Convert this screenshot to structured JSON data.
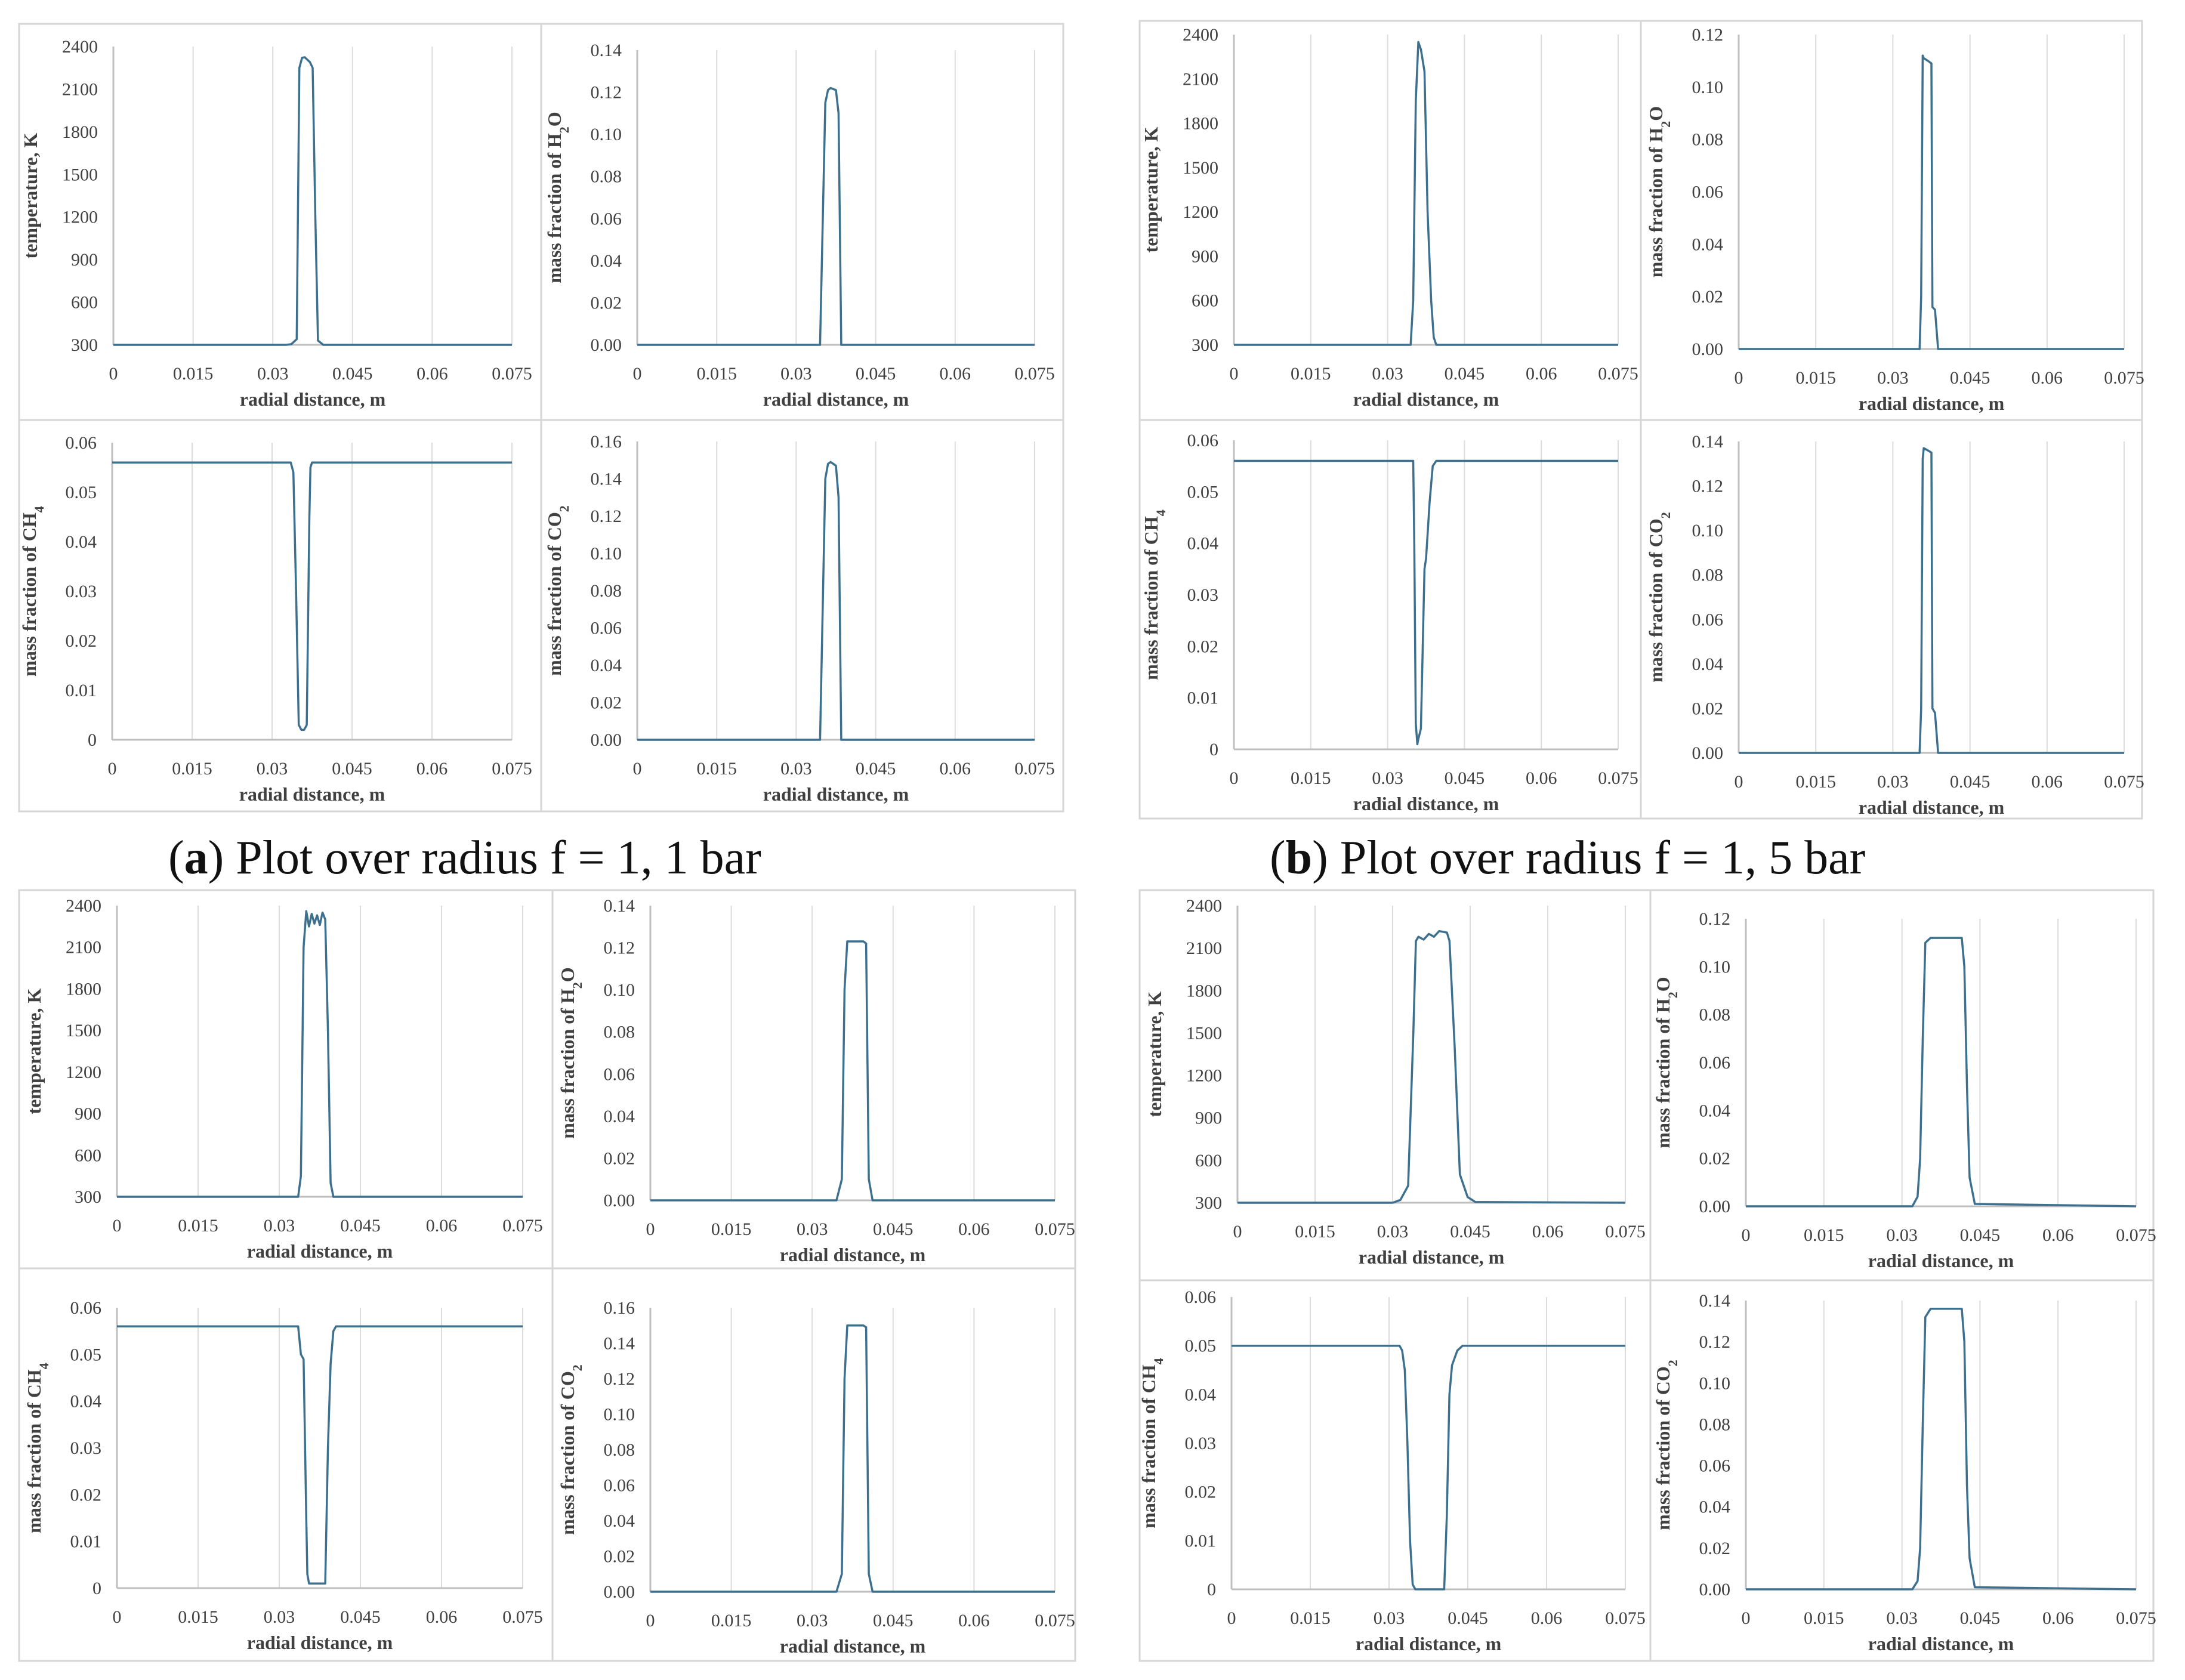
{
  "captions": [
    {
      "letter": "a",
      "text": "Plot over radius f = 1, 1 bar"
    },
    {
      "letter": "b",
      "text": "Plot over radius f = 1, 5 bar"
    }
  ],
  "style": {
    "line_color": "#3d6f8e",
    "axis_color": "#bfbfbf",
    "grid_color": "#dcdcdc",
    "frame_color": "#d6d6d6",
    "text_color": "#404040"
  },
  "chart_data": [
    {
      "id": "a-temperature",
      "type": "line",
      "xlabel": "radial distance, m",
      "ylabel": "temperature, K",
      "ylabel_parts": [
        {
          "t": "temperature, K"
        }
      ],
      "xticks": [
        "0",
        "0.015",
        "0.03",
        "0.045",
        "0.06",
        "0.075"
      ],
      "yticks": [
        "300",
        "600",
        "900",
        "1200",
        "1500",
        "1800",
        "2100",
        "2400"
      ],
      "xlim": [
        0,
        0.075
      ],
      "ylim": [
        300,
        2400
      ],
      "grid": "vertical",
      "x": [
        0,
        0.0325,
        0.0335,
        0.0345,
        0.035,
        0.0355,
        0.036,
        0.037,
        0.0375,
        0.038,
        0.0385,
        0.0395,
        0.075
      ],
      "y": [
        300,
        300,
        305,
        340,
        2250,
        2320,
        2325,
        2290,
        2250,
        1200,
        330,
        300,
        300
      ]
    },
    {
      "id": "a-h2o",
      "type": "line",
      "xlabel": "radial distance, m",
      "ylabel": "mass fraction of H2O",
      "ylabel_parts": [
        {
          "t": "mass fraction of H"
        },
        {
          "t": "2",
          "sub": true
        },
        {
          "t": "O"
        }
      ],
      "xticks": [
        "0",
        "0.015",
        "0.03",
        "0.045",
        "0.06",
        "0.075"
      ],
      "yticks": [
        "0.00",
        "0.02",
        "0.04",
        "0.06",
        "0.08",
        "0.10",
        "0.12",
        "0.14"
      ],
      "xlim": [
        0,
        0.075
      ],
      "ylim": [
        0,
        0.14
      ],
      "grid": "vertical",
      "x": [
        0,
        0.0345,
        0.0355,
        0.036,
        0.0365,
        0.0375,
        0.038,
        0.0385,
        0.075
      ],
      "y": [
        0,
        0,
        0.115,
        0.121,
        0.122,
        0.121,
        0.11,
        0,
        0
      ]
    },
    {
      "id": "a-ch4",
      "type": "line",
      "xlabel": "radial distance, m",
      "ylabel": "mass fraction of CH4",
      "ylabel_parts": [
        {
          "t": "mass fraction of CH"
        },
        {
          "t": "4",
          "sub": true
        }
      ],
      "xticks": [
        "0",
        "0.015",
        "0.03",
        "0.045",
        "0.06",
        "0.075"
      ],
      "yticks": [
        "0",
        "0.01",
        "0.02",
        "0.03",
        "0.04",
        "0.05",
        "0.06"
      ],
      "xlim": [
        0,
        0.075
      ],
      "ylim": [
        0,
        0.06
      ],
      "grid": "vertical",
      "x": [
        0,
        0.0335,
        0.034,
        0.0345,
        0.035,
        0.0355,
        0.036,
        0.0365,
        0.037,
        0.0372,
        0.0375,
        0.075
      ],
      "y": [
        0.056,
        0.056,
        0.054,
        0.03,
        0.003,
        0.002,
        0.002,
        0.003,
        0.045,
        0.055,
        0.056,
        0.056
      ]
    },
    {
      "id": "a-co2",
      "type": "line",
      "xlabel": "radial distance, m",
      "ylabel": "mass fraction of CO2",
      "ylabel_parts": [
        {
          "t": "mass fraction of CO"
        },
        {
          "t": "2",
          "sub": true
        }
      ],
      "xticks": [
        "0",
        "0.015",
        "0.03",
        "0.045",
        "0.06",
        "0.075"
      ],
      "yticks": [
        "0.00",
        "0.02",
        "0.04",
        "0.06",
        "0.08",
        "0.10",
        "0.12",
        "0.14",
        "0.16"
      ],
      "xlim": [
        0,
        0.075
      ],
      "ylim": [
        0,
        0.16
      ],
      "grid": "vertical",
      "x": [
        0,
        0.0345,
        0.0355,
        0.036,
        0.0365,
        0.0375,
        0.038,
        0.0385,
        0.075
      ],
      "y": [
        0,
        0,
        0.14,
        0.148,
        0.149,
        0.147,
        0.13,
        0,
        0
      ]
    },
    {
      "id": "b-temperature",
      "type": "line",
      "xlabel": "radial distance, m",
      "ylabel": "temperature, K",
      "ylabel_parts": [
        {
          "t": "temperature, K"
        }
      ],
      "xticks": [
        "0",
        "0.015",
        "0.03",
        "0.045",
        "0.06",
        "0.075"
      ],
      "yticks": [
        "300",
        "600",
        "900",
        "1200",
        "1500",
        "1800",
        "2100",
        "2400"
      ],
      "xlim": [
        0,
        0.075
      ],
      "ylim": [
        300,
        2400
      ],
      "grid": "vertical",
      "x": [
        0,
        0.0345,
        0.035,
        0.0355,
        0.036,
        0.0365,
        0.0372,
        0.0378,
        0.0385,
        0.039,
        0.0395,
        0.0402,
        0.075
      ],
      "y": [
        300,
        300,
        600,
        1950,
        2350,
        2300,
        2150,
        1200,
        600,
        350,
        300,
        300,
        300
      ]
    },
    {
      "id": "b-h2o",
      "type": "line",
      "xlabel": "radial distance, m",
      "ylabel": "mass fraction of H2O",
      "ylabel_parts": [
        {
          "t": "mass fraction of H"
        },
        {
          "t": "2",
          "sub": true
        },
        {
          "t": "O"
        }
      ],
      "xticks": [
        "0",
        "0.015",
        "0.03",
        "0.045",
        "0.06",
        "0.075"
      ],
      "yticks": [
        "0.00",
        "0.02",
        "0.04",
        "0.06",
        "0.08",
        "0.10",
        "0.12"
      ],
      "xlim": [
        0,
        0.075
      ],
      "ylim": [
        0,
        0.12
      ],
      "grid": "vertical",
      "x": [
        0,
        0.0352,
        0.0355,
        0.0358,
        0.036,
        0.0368,
        0.0375,
        0.0377,
        0.0382,
        0.0388,
        0.075
      ],
      "y": [
        0,
        0,
        0.02,
        0.112,
        0.111,
        0.11,
        0.109,
        0.016,
        0.015,
        0,
        0
      ]
    },
    {
      "id": "b-ch4",
      "type": "line",
      "xlabel": "radial distance, m",
      "ylabel": "mass fraction of CH4",
      "ylabel_parts": [
        {
          "t": "mass fraction of CH"
        },
        {
          "t": "4",
          "sub": true
        }
      ],
      "xticks": [
        "0",
        "0.015",
        "0.03",
        "0.045",
        "0.06",
        "0.075"
      ],
      "yticks": [
        "0",
        "0.01",
        "0.02",
        "0.03",
        "0.04",
        "0.05",
        "0.06"
      ],
      "xlim": [
        0,
        0.075
      ],
      "ylim": [
        0,
        0.06
      ],
      "grid": "vertical",
      "x": [
        0,
        0.035,
        0.0352,
        0.0355,
        0.0358,
        0.036,
        0.0365,
        0.0372,
        0.0375,
        0.0382,
        0.0388,
        0.0395,
        0.075
      ],
      "y": [
        0.056,
        0.056,
        0.04,
        0.005,
        0.001,
        0.002,
        0.004,
        0.035,
        0.037,
        0.048,
        0.055,
        0.056,
        0.056
      ]
    },
    {
      "id": "b-co2",
      "type": "line",
      "xlabel": "radial distance, m",
      "ylabel": "mass fraction of CO2",
      "ylabel_parts": [
        {
          "t": "mass fraction of CO"
        },
        {
          "t": "2",
          "sub": true
        }
      ],
      "xticks": [
        "0",
        "0.015",
        "0.03",
        "0.045",
        "0.06",
        "0.075"
      ],
      "yticks": [
        "0.00",
        "0.02",
        "0.04",
        "0.06",
        "0.08",
        "0.10",
        "0.12",
        "0.14"
      ],
      "xlim": [
        0,
        0.075
      ],
      "ylim": [
        0,
        0.14
      ],
      "grid": "vertical",
      "x": [
        0,
        0.0352,
        0.0355,
        0.0358,
        0.036,
        0.0368,
        0.0375,
        0.0377,
        0.0382,
        0.0388,
        0.075
      ],
      "y": [
        0,
        0,
        0.02,
        0.132,
        0.137,
        0.136,
        0.135,
        0.02,
        0.018,
        0,
        0
      ]
    },
    {
      "id": "c-temperature",
      "type": "line",
      "xlabel": "radial distance, m",
      "ylabel": "temperature, K",
      "ylabel_parts": [
        {
          "t": "temperature, K"
        }
      ],
      "xticks": [
        "0",
        "0.015",
        "0.03",
        "0.045",
        "0.06",
        "0.075"
      ],
      "yticks": [
        "300",
        "600",
        "900",
        "1200",
        "1500",
        "1800",
        "2100",
        "2400"
      ],
      "xlim": [
        0,
        0.075
      ],
      "ylim": [
        300,
        2400
      ],
      "grid": "vertical",
      "x": [
        0,
        0.0335,
        0.034,
        0.0345,
        0.035,
        0.0355,
        0.036,
        0.0365,
        0.037,
        0.0375,
        0.038,
        0.0385,
        0.039,
        0.0395,
        0.04,
        0.075
      ],
      "y": [
        300,
        300,
        450,
        2100,
        2360,
        2250,
        2340,
        2270,
        2330,
        2260,
        2350,
        2300,
        1500,
        400,
        300,
        300
      ]
    },
    {
      "id": "c-h2o",
      "type": "line",
      "xlabel": "radial distance, m",
      "ylabel": "mass fraction of H2O",
      "ylabel_parts": [
        {
          "t": "mass fraction of H"
        },
        {
          "t": "2",
          "sub": true
        },
        {
          "t": "O"
        }
      ],
      "xticks": [
        "0",
        "0.015",
        "0.03",
        "0.045",
        "0.06",
        "0.075"
      ],
      "yticks": [
        "0.00",
        "0.02",
        "0.04",
        "0.06",
        "0.08",
        "0.10",
        "0.12",
        "0.14"
      ],
      "xlim": [
        0,
        0.075
      ],
      "ylim": [
        0,
        0.14
      ],
      "grid": "vertical",
      "x": [
        0,
        0.0345,
        0.0355,
        0.036,
        0.0365,
        0.0395,
        0.04,
        0.0405,
        0.0412,
        0.075
      ],
      "y": [
        0,
        0,
        0.01,
        0.1,
        0.123,
        0.123,
        0.122,
        0.01,
        0,
        0
      ]
    },
    {
      "id": "c-ch4",
      "type": "line",
      "xlabel": "radial distance, m",
      "ylabel": "mass fraction of CH4",
      "ylabel_parts": [
        {
          "t": "mass fraction of CH"
        },
        {
          "t": "4",
          "sub": true
        }
      ],
      "xticks": [
        "0",
        "0.015",
        "0.03",
        "0.045",
        "0.06",
        "0.075"
      ],
      "yticks": [
        "0",
        "0.01",
        "0.02",
        "0.03",
        "0.04",
        "0.05",
        "0.06"
      ],
      "xlim": [
        0,
        0.075
      ],
      "ylim": [
        0,
        0.06
      ],
      "grid": "vertical",
      "x": [
        0,
        0.0335,
        0.034,
        0.0345,
        0.035,
        0.0352,
        0.0355,
        0.036,
        0.038,
        0.0385,
        0.039,
        0.0395,
        0.04,
        0.0405,
        0.075
      ],
      "y": [
        0.056,
        0.056,
        0.05,
        0.049,
        0.015,
        0.003,
        0.001,
        0.001,
        0.001,
        0.001,
        0.03,
        0.048,
        0.055,
        0.056,
        0.056
      ]
    },
    {
      "id": "c-co2",
      "type": "line",
      "xlabel": "radial distance, m",
      "ylabel": "mass fraction of CO2",
      "ylabel_parts": [
        {
          "t": "mass fraction of CO"
        },
        {
          "t": "2",
          "sub": true
        }
      ],
      "xticks": [
        "0",
        "0.015",
        "0.03",
        "0.045",
        "0.06",
        "0.075"
      ],
      "yticks": [
        "0.00",
        "0.02",
        "0.04",
        "0.06",
        "0.08",
        "0.10",
        "0.12",
        "0.14",
        "0.16"
      ],
      "xlim": [
        0,
        0.075
      ],
      "ylim": [
        0,
        0.16
      ],
      "grid": "vertical",
      "x": [
        0,
        0.0345,
        0.0355,
        0.036,
        0.0365,
        0.0395,
        0.04,
        0.0405,
        0.0412,
        0.075
      ],
      "y": [
        0,
        0,
        0.01,
        0.12,
        0.15,
        0.15,
        0.149,
        0.01,
        0,
        0
      ]
    },
    {
      "id": "d-temperature",
      "type": "line",
      "xlabel": "radial distance, m",
      "ylabel": "temperature, K",
      "ylabel_parts": [
        {
          "t": "temperature, K"
        }
      ],
      "xticks": [
        "0",
        "0.015",
        "0.03",
        "0.045",
        "0.06",
        "0.075"
      ],
      "yticks": [
        "300",
        "600",
        "900",
        "1200",
        "1500",
        "1800",
        "2100",
        "2400"
      ],
      "xlim": [
        0,
        0.075
      ],
      "ylim": [
        300,
        2400
      ],
      "grid": "vertical",
      "x": [
        0,
        0.03,
        0.0315,
        0.033,
        0.034,
        0.0345,
        0.035,
        0.036,
        0.037,
        0.038,
        0.039,
        0.0405,
        0.041,
        0.042,
        0.043,
        0.0445,
        0.046,
        0.075
      ],
      "y": [
        300,
        300,
        320,
        420,
        1500,
        2150,
        2180,
        2160,
        2200,
        2180,
        2220,
        2210,
        2150,
        1400,
        500,
        340,
        305,
        300
      ]
    },
    {
      "id": "d-h2o",
      "type": "line",
      "xlabel": "radial distance, m",
      "ylabel": "mass fraction of H2O",
      "ylabel_parts": [
        {
          "t": "mass fraction of H"
        },
        {
          "t": "2",
          "sub": true
        },
        {
          "t": "O"
        }
      ],
      "xticks": [
        "0",
        "0.015",
        "0.03",
        "0.045",
        "0.06",
        "0.075"
      ],
      "yticks": [
        "0.00",
        "0.02",
        "0.04",
        "0.06",
        "0.08",
        "0.10",
        "0.12"
      ],
      "xlim": [
        0,
        0.075
      ],
      "ylim": [
        0,
        0.12
      ],
      "grid": "vertical",
      "x": [
        0,
        0.032,
        0.033,
        0.0335,
        0.034,
        0.0345,
        0.0355,
        0.0415,
        0.042,
        0.0425,
        0.043,
        0.044,
        0.075
      ],
      "y": [
        0,
        0,
        0.004,
        0.02,
        0.07,
        0.11,
        0.112,
        0.112,
        0.1,
        0.05,
        0.012,
        0.001,
        0
      ]
    },
    {
      "id": "d-ch4",
      "type": "line",
      "xlabel": "radial distance, m",
      "ylabel": "mass fraction of CH4",
      "ylabel_parts": [
        {
          "t": "mass fraction of CH"
        },
        {
          "t": "4",
          "sub": true
        }
      ],
      "xticks": [
        "0",
        "0.015",
        "0.03",
        "0.045",
        "0.06",
        "0.075"
      ],
      "yticks": [
        "0",
        "0.01",
        "0.02",
        "0.03",
        "0.04",
        "0.05",
        "0.06"
      ],
      "xlim": [
        0,
        0.075
      ],
      "ylim": [
        0,
        0.06
      ],
      "grid": "vertical",
      "x": [
        0,
        0.032,
        0.0325,
        0.033,
        0.0335,
        0.034,
        0.0345,
        0.035,
        0.0405,
        0.041,
        0.0415,
        0.042,
        0.043,
        0.044,
        0.075
      ],
      "y": [
        0.05,
        0.05,
        0.049,
        0.045,
        0.03,
        0.01,
        0.001,
        0,
        0,
        0.015,
        0.04,
        0.046,
        0.049,
        0.05,
        0.05
      ]
    },
    {
      "id": "d-co2",
      "type": "line",
      "xlabel": "radial distance, m",
      "ylabel": "mass fraction of CO2",
      "ylabel_parts": [
        {
          "t": "mass fraction of CO"
        },
        {
          "t": "2",
          "sub": true
        }
      ],
      "xticks": [
        "0",
        "0.015",
        "0.03",
        "0.045",
        "0.06",
        "0.075"
      ],
      "yticks": [
        "0.00",
        "0.02",
        "0.04",
        "0.06",
        "0.08",
        "0.10",
        "0.12",
        "0.14"
      ],
      "xlim": [
        0,
        0.075
      ],
      "ylim": [
        0,
        0.14
      ],
      "grid": "vertical",
      "x": [
        0,
        0.032,
        0.033,
        0.0335,
        0.034,
        0.0345,
        0.0355,
        0.0415,
        0.042,
        0.0425,
        0.043,
        0.044,
        0.075
      ],
      "y": [
        0,
        0,
        0.004,
        0.02,
        0.08,
        0.132,
        0.136,
        0.136,
        0.12,
        0.05,
        0.015,
        0.001,
        0
      ]
    }
  ]
}
